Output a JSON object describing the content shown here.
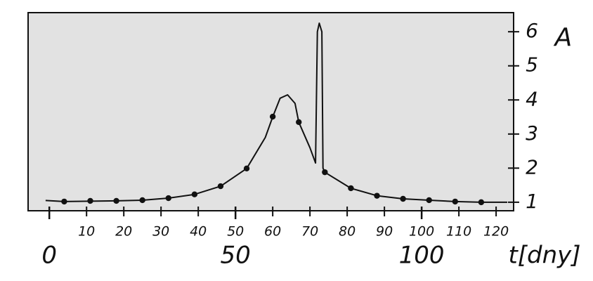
{
  "chart_data": {
    "type": "line",
    "y_label": "A",
    "x_label": "t[dny]",
    "xlim": [
      -5.7,
      124.7
    ],
    "ylim": [
      0.75,
      6.56
    ],
    "xticks": [
      10,
      20,
      30,
      40,
      50,
      60,
      70,
      80,
      90,
      100,
      110,
      120
    ],
    "xticks_major": [
      0,
      50,
      100
    ],
    "yticks": [
      1,
      2,
      3,
      4,
      5,
      6
    ],
    "series": [
      {
        "color": "#111111",
        "marker": false,
        "x": [
          -1,
          4,
          11,
          18,
          25,
          32,
          39,
          46,
          53,
          58,
          60,
          62,
          64,
          66,
          67,
          70,
          71.5,
          72,
          72.5,
          73.2,
          73.5,
          74,
          81,
          88,
          95,
          102,
          109,
          116,
          123
        ],
        "values": [
          1.05,
          1.02,
          1.03,
          1.04,
          1.06,
          1.12,
          1.23,
          1.47,
          1.99,
          2.9,
          3.5,
          4.05,
          4.15,
          3.9,
          3.35,
          2.6,
          2.15,
          6.0,
          6.25,
          6.0,
          2.0,
          1.88,
          1.41,
          1.19,
          1.1,
          1.06,
          1.02,
          1.0,
          1.0
        ]
      },
      {
        "color": "#111111",
        "marker": true,
        "x": [
          4,
          11,
          18,
          25,
          32,
          39,
          46,
          53,
          60,
          67,
          74,
          81,
          88,
          95,
          102,
          109,
          116
        ],
        "values": [
          1.02,
          1.04,
          1.04,
          1.06,
          1.12,
          1.23,
          1.47,
          1.99,
          3.51,
          3.35,
          1.88,
          1.41,
          1.19,
          1.1,
          1.06,
          1.02,
          1.0
        ]
      }
    ]
  }
}
